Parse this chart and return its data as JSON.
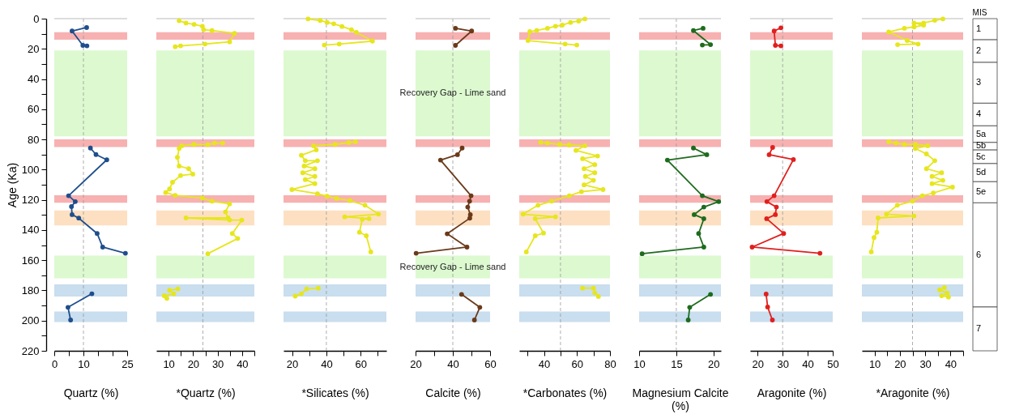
{
  "chart_data": [
    {
      "type": "line",
      "xlabel": "Quartz (%)",
      "ylabel": "Age (Ka)",
      "marker": "circle",
      "xlim": [
        0,
        25
      ],
      "xticks": [
        0,
        {
          "value": 5,
          "label": null
        },
        10,
        {
          "value": 15,
          "label": null
        },
        {
          "value": 20,
          "label": null
        },
        25
      ],
      "ylim": [
        220,
        0
      ],
      "yticks": [
        0,
        {
          "value": 10,
          "label": null
        },
        20,
        {
          "value": 30,
          "label": null
        },
        40,
        {
          "value": 50,
          "label": null
        },
        60,
        {
          "value": 70,
          "label": null
        },
        80,
        {
          "value": 90,
          "label": null
        },
        100,
        {
          "value": 110,
          "label": null
        },
        120,
        {
          "value": 130,
          "label": null
        },
        140,
        {
          "value": 150,
          "label": null
        },
        160,
        {
          "value": 170,
          "label": null
        },
        180,
        {
          "value": 190,
          "label": null
        },
        200,
        {
          "value": 210,
          "label": null
        },
        220
      ],
      "series": [
        {
          "color": "#1f4e8c",
          "x": [
            11.1,
            6.1,
            9.8,
            11.2,
            null,
            12.4,
            14.3,
            18,
            4.9,
            7.2,
            5.9,
            6.1,
            8.4,
            14.7,
            16.6,
            24.4,
            null,
            12.9,
            4.7,
            5.6
          ],
          "values": [
            5.9,
            8.2,
            17.7,
            18,
            null,
            85.7,
            90,
            93.5,
            117.3,
            121.2,
            124.5,
            129.8,
            132.1,
            142.3,
            151.3,
            155.4,
            null,
            182.2,
            191.2,
            199.6
          ]
        }
      ],
      "ref_lines": [
        {
          "axis": "x",
          "value": 10,
          "color": "#999999",
          "line_style": "dashed"
        }
      ],
      "bands": [
        {
          "axis": "y",
          "from": 9,
          "to": 14,
          "color": "#f7b1b1"
        },
        {
          "axis": "y",
          "from": 21,
          "to": 78,
          "color": "#dcf9d0"
        },
        {
          "axis": "y",
          "from": 80,
          "to": 85,
          "color": "#f7b1b1"
        },
        {
          "axis": "y",
          "from": 117,
          "to": 122,
          "color": "#f7b1b1"
        },
        {
          "axis": "y",
          "from": 127,
          "to": 137,
          "color": "#fde0c2"
        },
        {
          "axis": "y",
          "from": 157,
          "to": 172,
          "color": "#dcf9d0"
        },
        {
          "axis": "y",
          "from": 176,
          "to": 184,
          "color": "#c9deee"
        },
        {
          "axis": "y",
          "from": 194,
          "to": 201,
          "color": "#c9deee"
        }
      ]
    },
    {
      "type": "line",
      "xlabel": "*Quartz (%)",
      "marker": "circle",
      "tick_labels": "x",
      "xlim": [
        5,
        45
      ],
      "xticks": [
        10,
        {
          "value": 15,
          "label": null
        },
        20,
        {
          "value": 25,
          "label": null
        },
        30,
        {
          "value": 35,
          "label": null
        },
        40,
        {
          "value": 45,
          "label": null
        }
      ],
      "ylim": [
        220,
        0
      ],
      "series": [
        {
          "color": "#e6e61e",
          "x": [
            14.3,
            17.1,
            20.4,
            23.8,
            24.3,
            27.7,
            36.9,
            34.9,
            24.9,
            14.9,
            12.7,
            null,
            32.1,
            28.8,
            26,
            20.4,
            15.4,
            14.3,
            13.6,
            14.3,
            18.2,
            19.9,
            14.9,
            11.6,
            10.4,
            8.8,
            12.7,
            23.8,
            27.7,
            34.9,
            33.2,
            34.3,
            17.1,
            34.9,
            39.9,
            36,
            38.2,
            26,
            null,
            13.8,
            10.4,
            12.1,
            8.2,
            9.3
          ],
          "values": [
            1.4,
            2.9,
            3.8,
            5,
            7.3,
            7.9,
            9.7,
            15.4,
            16.8,
            18,
            18.6,
            null,
            82.4,
            82.4,
            83.5,
            83.3,
            84.2,
            86,
            91.9,
            97.6,
            99.4,
            103,
            103.9,
            108.4,
            112.8,
            115.2,
            117,
            118.8,
            120.9,
            122.7,
            128,
            132,
            132,
            133.4,
            133.4,
            142.3,
            145.6,
            155.7,
            null,
            179,
            179.9,
            182.2,
            183.5,
            185.2
          ]
        }
      ],
      "ref_lines": [
        {
          "axis": "x",
          "value": 24,
          "color": "#999999",
          "line_style": "dashed"
        }
      ],
      "bands": [
        {
          "axis": "y",
          "from": 9,
          "to": 14,
          "color": "#f7b1b1"
        },
        {
          "axis": "y",
          "from": 21,
          "to": 78,
          "color": "#dcf9d0"
        },
        {
          "axis": "y",
          "from": 80,
          "to": 85,
          "color": "#f7b1b1"
        },
        {
          "axis": "y",
          "from": 117,
          "to": 122,
          "color": "#f7b1b1"
        },
        {
          "axis": "y",
          "from": 127,
          "to": 137,
          "color": "#fde0c2"
        },
        {
          "axis": "y",
          "from": 157,
          "to": 172,
          "color": "#dcf9d0"
        },
        {
          "axis": "y",
          "from": 176,
          "to": 184,
          "color": "#c9deee"
        },
        {
          "axis": "y",
          "from": 194,
          "to": 201,
          "color": "#c9deee"
        }
      ]
    },
    {
      "type": "line",
      "xlabel": "*Silicates (%)",
      "marker": "circle",
      "tick_labels": "x",
      "xlim": [
        15,
        75
      ],
      "xticks": [
        20,
        {
          "value": 30,
          "label": null
        },
        40,
        {
          "value": 50,
          "label": null
        },
        60,
        {
          "value": 70,
          "label": null
        }
      ],
      "ylim": [
        220,
        0
      ],
      "series": [
        {
          "color": "#e6e61e",
          "x": [
            29.3,
            36.4,
            40.4,
            44.3,
            49.1,
            54.6,
            57.5,
            66.9,
            47.5,
            38.8,
            null,
            57,
            53,
            45.1,
            32.5,
            34.1,
            25.4,
            27.7,
            34.8,
            27,
            33.3,
            26.2,
            33.3,
            27.7,
            33.3,
            19.9,
            34.8,
            40.4,
            45.9,
            53.8,
            62.5,
            70.4,
            50.7,
            64.9,
            60.9,
            59.3,
            63.3,
            65.9,
            null,
            35.3,
            28.5,
            25.4,
            21.8
          ],
          "values": [
            0.2,
            1.2,
            2.5,
            3.4,
            5.2,
            7.3,
            9.1,
            14.9,
            16.8,
            17.5,
            null,
            81.5,
            82.1,
            83.3,
            84.2,
            86.9,
            90.5,
            94.1,
            94.1,
            97.6,
            99.4,
            102.1,
            104.5,
            106.6,
            109.3,
            113.2,
            116,
            117.6,
            119.1,
            120.5,
            123.6,
            129.5,
            131.3,
            132.5,
            133,
            141.5,
            143.8,
            154.5,
            null,
            178.5,
            179,
            182.2,
            183.8
          ]
        }
      ],
      "ref_lines": [
        {
          "axis": "x",
          "value": 40,
          "color": "#999999",
          "line_style": "dashed"
        }
      ],
      "bands": [
        {
          "axis": "y",
          "from": 9,
          "to": 14,
          "color": "#f7b1b1"
        },
        {
          "axis": "y",
          "from": 21,
          "to": 78,
          "color": "#dcf9d0"
        },
        {
          "axis": "y",
          "from": 80,
          "to": 85,
          "color": "#f7b1b1"
        },
        {
          "axis": "y",
          "from": 117,
          "to": 122,
          "color": "#f7b1b1"
        },
        {
          "axis": "y",
          "from": 127,
          "to": 137,
          "color": "#fde0c2"
        },
        {
          "axis": "y",
          "from": 157,
          "to": 172,
          "color": "#dcf9d0"
        },
        {
          "axis": "y",
          "from": 176,
          "to": 184,
          "color": "#c9deee"
        },
        {
          "axis": "y",
          "from": 194,
          "to": 201,
          "color": "#c9deee"
        }
      ]
    },
    {
      "type": "line",
      "xlabel": "Calcite (%)",
      "marker": "circle",
      "tick_labels": "x",
      "xlim": [
        20,
        60
      ],
      "xticks": [
        20,
        {
          "value": 30,
          "label": null
        },
        40,
        {
          "value": 50,
          "label": null
        },
        60
      ],
      "ylim": [
        220,
        0
      ],
      "series": [
        {
          "color": "#6b3a1a",
          "x": [
            41.4,
            50.1,
            41.4,
            null,
            45,
            42.5,
            33.4,
            49.8,
            49,
            48,
            49.4,
            49.1,
            37,
            47.6,
            20.3,
            null,
            44.7,
            54.5,
            51.6
          ],
          "values": [
            6.4,
            8.2,
            17.7,
            null,
            85.7,
            90.1,
            93.7,
            117.3,
            120.9,
            124.8,
            129.8,
            132.2,
            142.5,
            151.3,
            155.4,
            null,
            182.6,
            191.2,
            199.6
          ]
        }
      ],
      "ref_lines": [
        {
          "axis": "x",
          "value": 40,
          "color": "#999999",
          "line_style": "dashed"
        }
      ],
      "bands": [
        {
          "axis": "y",
          "from": 9,
          "to": 14,
          "color": "#f7b1b1"
        },
        {
          "axis": "y",
          "from": 21,
          "to": 78,
          "color": "#dcf9d0",
          "label": "Recovery Gap - Lime sand"
        },
        {
          "axis": "y",
          "from": 80,
          "to": 85,
          "color": "#f7b1b1"
        },
        {
          "axis": "y",
          "from": 117,
          "to": 122,
          "color": "#f7b1b1"
        },
        {
          "axis": "y",
          "from": 127,
          "to": 137,
          "color": "#fde0c2"
        },
        {
          "axis": "y",
          "from": 157,
          "to": 172,
          "color": "#dcf9d0",
          "label": "Recovery Gap - Lime sand"
        },
        {
          "axis": "y",
          "from": 176,
          "to": 184,
          "color": "#c9deee"
        },
        {
          "axis": "y",
          "from": 194,
          "to": 201,
          "color": "#c9deee"
        }
      ]
    },
    {
      "type": "line",
      "xlabel": "*Carbonates (%)",
      "marker": "circle",
      "tick_labels": "x",
      "xlim": [
        25,
        80
      ],
      "xticks": [
        {
          "value": 30,
          "label": null
        },
        40,
        {
          "value": 50,
          "label": null
        },
        60,
        {
          "value": 70,
          "label": null
        },
        80
      ],
      "ylim": [
        220,
        0
      ],
      "series": [
        {
          "color": "#e6e61e",
          "x": [
            64.8,
            61,
            56.1,
            51.1,
            47,
            42.1,
            35.6,
            31.4,
            30.3,
            52.8,
            59.9,
            null,
            38,
            42.1,
            49.5,
            55.3,
            64.8,
            59.4,
            72.5,
            63.4,
            70.8,
            64.3,
            70.8,
            65.1,
            70,
            64.3,
            75.8,
            62.7,
            55.3,
            44.6,
            36.4,
            27.3,
            47,
            34.7,
            39.7,
            34.7,
            29.3,
            null,
            63.4,
            70,
            70.8,
            73
          ],
          "values": [
            0.2,
            1.6,
            2.5,
            4.3,
            5,
            6.4,
            7.9,
            8.6,
            14.5,
            16.8,
            17.5,
            null,
            81.9,
            82.4,
            83.3,
            83.7,
            84.2,
            87.3,
            91,
            92.8,
            96.7,
            99.4,
            102.1,
            104.5,
            107.1,
            110.1,
            113.2,
            114.6,
            117.3,
            120.9,
            123.6,
            129.5,
            131.3,
            132.5,
            142,
            143.8,
            154.5,
            null,
            178.5,
            178.5,
            181.7,
            184
          ]
        }
      ],
      "ref_lines": [
        {
          "axis": "x",
          "value": 50,
          "color": "#999999",
          "line_style": "dashed"
        }
      ],
      "bands": [
        {
          "axis": "y",
          "from": 9,
          "to": 14,
          "color": "#f7b1b1"
        },
        {
          "axis": "y",
          "from": 21,
          "to": 78,
          "color": "#dcf9d0"
        },
        {
          "axis": "y",
          "from": 80,
          "to": 85,
          "color": "#f7b1b1"
        },
        {
          "axis": "y",
          "from": 117,
          "to": 122,
          "color": "#f7b1b1"
        },
        {
          "axis": "y",
          "from": 127,
          "to": 137,
          "color": "#fde0c2"
        },
        {
          "axis": "y",
          "from": 157,
          "to": 172,
          "color": "#dcf9d0"
        },
        {
          "axis": "y",
          "from": 176,
          "to": 184,
          "color": "#c9deee"
        },
        {
          "axis": "y",
          "from": 194,
          "to": 201,
          "color": "#c9deee"
        }
      ]
    },
    {
      "type": "line",
      "xlabel": "Magnesium Calcite (%)",
      "marker": "circle",
      "tick_labels": "x",
      "xlim": [
        10,
        21
      ],
      "xticks": [
        10,
        15,
        20
      ],
      "ylim": [
        220,
        0
      ],
      "series": [
        {
          "color": "#1e6b1e",
          "x": [
            18.6,
            17.3,
            19.6,
            18.5,
            null,
            17.3,
            19.1,
            13.8,
            18.5,
            20.7,
            18.7,
            17.4,
            18.7,
            18,
            18.7,
            10.4,
            null,
            19.6,
            16.8,
            16.6
          ],
          "values": [
            6.4,
            7.9,
            17.2,
            17.5,
            null,
            85.7,
            90.1,
            93.7,
            117.3,
            121.2,
            124.8,
            129.8,
            132.5,
            142.3,
            151.3,
            155.7,
            null,
            182.6,
            191.2,
            199.6
          ]
        }
      ],
      "ref_lines": [
        {
          "axis": "x",
          "value": 15,
          "color": "#999999",
          "line_style": "dashed"
        }
      ],
      "bands": [
        {
          "axis": "y",
          "from": 9,
          "to": 14,
          "color": "#f7b1b1"
        },
        {
          "axis": "y",
          "from": 21,
          "to": 78,
          "color": "#dcf9d0"
        },
        {
          "axis": "y",
          "from": 80,
          "to": 85,
          "color": "#f7b1b1"
        },
        {
          "axis": "y",
          "from": 117,
          "to": 122,
          "color": "#f7b1b1"
        },
        {
          "axis": "y",
          "from": 127,
          "to": 137,
          "color": "#fde0c2"
        },
        {
          "axis": "y",
          "from": 157,
          "to": 172,
          "color": "#dcf9d0"
        },
        {
          "axis": "y",
          "from": 176,
          "to": 184,
          "color": "#c9deee"
        },
        {
          "axis": "y",
          "from": 194,
          "to": 201,
          "color": "#c9deee"
        }
      ]
    },
    {
      "type": "line",
      "xlabel": "Aragonite (%)",
      "marker": "circle",
      "tick_labels": "x",
      "xlim": [
        17,
        50
      ],
      "xticks": [
        20,
        30,
        40,
        50
      ],
      "ylim": [
        220,
        0
      ],
      "series": [
        {
          "color": "#e0201e",
          "x": [
            29.3,
            26.6,
            27.1,
            29.3,
            null,
            26,
            24.6,
            34.3,
            26.6,
            23.7,
            27.5,
            27.1,
            23.6,
            30.4,
            17.8,
            44.9,
            null,
            23.4,
            24,
            25.9
          ],
          "values": [
            6.1,
            8.2,
            17.7,
            18,
            null,
            85.3,
            90.1,
            93.3,
            117.3,
            121.2,
            124.8,
            129.8,
            132.5,
            142.3,
            151.3,
            155.4,
            null,
            182.4,
            191,
            199.6
          ]
        }
      ],
      "ref_lines": [
        {
          "axis": "x",
          "value": 30,
          "color": "#999999",
          "line_style": "dashed"
        }
      ],
      "bands": [
        {
          "axis": "y",
          "from": 9,
          "to": 14,
          "color": "#f7b1b1"
        },
        {
          "axis": "y",
          "from": 21,
          "to": 78,
          "color": "#dcf9d0"
        },
        {
          "axis": "y",
          "from": 80,
          "to": 85,
          "color": "#f7b1b1"
        },
        {
          "axis": "y",
          "from": 117,
          "to": 122,
          "color": "#f7b1b1"
        },
        {
          "axis": "y",
          "from": 127,
          "to": 137,
          "color": "#fde0c2"
        },
        {
          "axis": "y",
          "from": 157,
          "to": 172,
          "color": "#dcf9d0"
        },
        {
          "axis": "y",
          "from": 176,
          "to": 184,
          "color": "#c9deee"
        },
        {
          "axis": "y",
          "from": 194,
          "to": 201,
          "color": "#c9deee"
        }
      ]
    },
    {
      "type": "line",
      "xlabel": "*Aragonite (%)",
      "marker": "circle",
      "tick_labels": "x",
      "xlim": [
        5,
        45
      ],
      "xticks": [
        10,
        {
          "value": 15,
          "label": null
        },
        20,
        {
          "value": 25,
          "label": null
        },
        30,
        {
          "value": 35,
          "label": null
        },
        40,
        {
          "value": 45,
          "label": null
        }
      ],
      "ylim": [
        220,
        0
      ],
      "series": [
        {
          "color": "#e6e61e",
          "x": [
            37,
            33.8,
            29.4,
            25.6,
            29.4,
            25.6,
            21.8,
            15.6,
            22.9,
            27.2,
            19.1,
            null,
            15.6,
            18.5,
            21.8,
            26.1,
            31,
            26.1,
            30.5,
            33.8,
            30.5,
            36.5,
            32.7,
            37,
            32.7,
            40.8,
            33.2,
            28.9,
            25,
            19,
            14.7,
            25.6,
            11.4,
            10.9,
            9.8,
            8.7,
            null,
            37.6,
            35.7,
            38.7,
            36.5,
            39.2
          ],
          "values": [
            0.2,
            1.1,
            2.9,
            2.9,
            4.3,
            5.5,
            6.4,
            8.8,
            14.5,
            16.8,
            17.2,
            null,
            81.5,
            82.4,
            83.3,
            83.3,
            84.2,
            86,
            89.6,
            94.1,
            99.4,
            102.1,
            104.5,
            107.1,
            109.3,
            111.6,
            115.5,
            117.3,
            120.9,
            123.6,
            129.5,
            130.7,
            132,
            141.5,
            145,
            154.5,
            null,
            178.1,
            179.6,
            181.7,
            183.5,
            184.4
          ]
        }
      ],
      "ref_lines": [
        {
          "axis": "x",
          "value": 25,
          "color": "#999999",
          "line_style": "dashed"
        }
      ],
      "bands": [
        {
          "axis": "y",
          "from": 9,
          "to": 14,
          "color": "#f7b1b1"
        },
        {
          "axis": "y",
          "from": 21,
          "to": 78,
          "color": "#dcf9d0"
        },
        {
          "axis": "y",
          "from": 80,
          "to": 85,
          "color": "#f7b1b1"
        },
        {
          "axis": "y",
          "from": 117,
          "to": 122,
          "color": "#f7b1b1"
        },
        {
          "axis": "y",
          "from": 127,
          "to": 137,
          "color": "#fde0c2"
        },
        {
          "axis": "y",
          "from": 157,
          "to": 172,
          "color": "#dcf9d0"
        },
        {
          "axis": "y",
          "from": 176,
          "to": 184,
          "color": "#c9deee"
        },
        {
          "axis": "y",
          "from": 194,
          "to": 201,
          "color": "#c9deee"
        }
      ]
    },
    {
      "type": "bar",
      "title": "MIS",
      "stacked": true,
      "tick_labels": false,
      "categories": [
        null
      ],
      "ylim": [
        220,
        0
      ],
      "series": [
        {
          "name": "1",
          "color": "#ffffff",
          "values": [
            14
          ]
        },
        {
          "name": "2",
          "color": "#ffffff",
          "values": [
            15
          ]
        },
        {
          "name": "3",
          "color": "#ffffff",
          "values": [
            27
          ]
        },
        {
          "name": "4",
          "color": "#ffffff",
          "values": [
            15
          ]
        },
        {
          "name": "5a",
          "color": "#ffffff",
          "values": [
            11
          ]
        },
        {
          "name": "5b",
          "color": "#ffffff",
          "values": [
            5
          ]
        },
        {
          "name": "5c",
          "color": "#ffffff",
          "values": [
            9
          ]
        },
        {
          "name": "5d",
          "color": "#ffffff",
          "values": [
            12
          ]
        },
        {
          "name": "5e",
          "color": "#ffffff",
          "values": [
            14
          ]
        },
        {
          "name": "6",
          "color": "#ffffff",
          "values": [
            69
          ]
        },
        {
          "name": "7",
          "color": "#ffffff",
          "values": [
            29
          ]
        }
      ]
    }
  ]
}
